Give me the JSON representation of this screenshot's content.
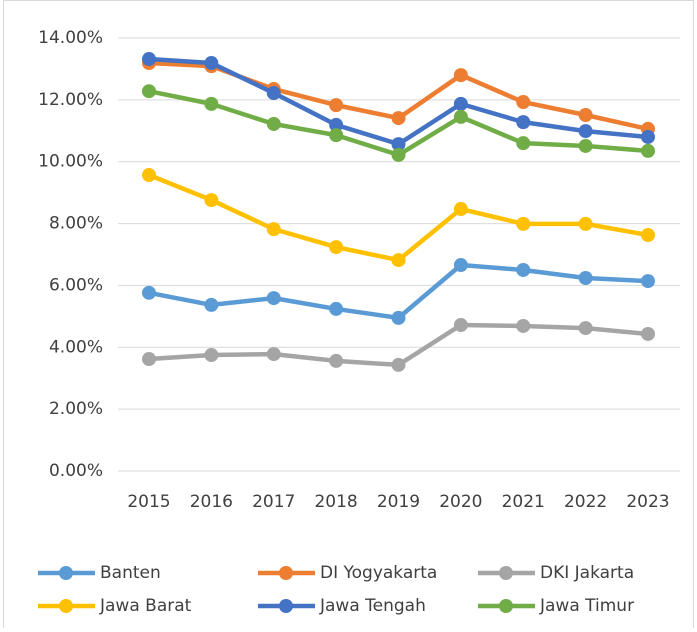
{
  "chart_data": {
    "type": "line",
    "categories": [
      "2015",
      "2016",
      "2017",
      "2018",
      "2019",
      "2020",
      "2021",
      "2022",
      "2023"
    ],
    "series": [
      {
        "name": "Banten",
        "color": "#5b9bd5",
        "values": [
          5.76,
          5.37,
          5.59,
          5.24,
          4.95,
          6.66,
          6.5,
          6.24,
          6.14
        ]
      },
      {
        "name": "DI Yogyakarta",
        "color": "#ed7d31",
        "values": [
          13.19,
          13.09,
          12.35,
          11.83,
          11.41,
          12.8,
          11.93,
          11.51,
          11.06
        ]
      },
      {
        "name": "DKI Jakarta",
        "color": "#a5a5a5",
        "values": [
          3.62,
          3.75,
          3.78,
          3.56,
          3.43,
          4.72,
          4.69,
          4.62,
          4.43
        ]
      },
      {
        "name": "Jawa Barat",
        "color": "#ffc000",
        "values": [
          9.57,
          8.76,
          7.82,
          7.24,
          6.82,
          8.47,
          7.99,
          7.99,
          7.63
        ]
      },
      {
        "name": "Jawa Tengah",
        "color": "#4472c4",
        "values": [
          13.32,
          13.19,
          12.22,
          11.19,
          10.57,
          11.87,
          11.28,
          10.99,
          10.8
        ]
      },
      {
        "name": "Jawa Timur",
        "color": "#70ad47",
        "values": [
          12.28,
          11.87,
          11.22,
          10.86,
          10.22,
          11.45,
          10.6,
          10.51,
          10.35
        ]
      }
    ],
    "ylim": [
      0,
      14
    ],
    "yticks": [
      {
        "value": 0,
        "label": "0.00%"
      },
      {
        "value": 2,
        "label": "2.00%"
      },
      {
        "value": 4,
        "label": "4.00%"
      },
      {
        "value": 6,
        "label": "6.00%"
      },
      {
        "value": 8,
        "label": "8.00%"
      },
      {
        "value": 10,
        "label": "10.00%"
      },
      {
        "value": 12,
        "label": "12.00%"
      },
      {
        "value": 14,
        "label": "14.00%"
      }
    ],
    "grid": true,
    "legend": "bottom"
  }
}
